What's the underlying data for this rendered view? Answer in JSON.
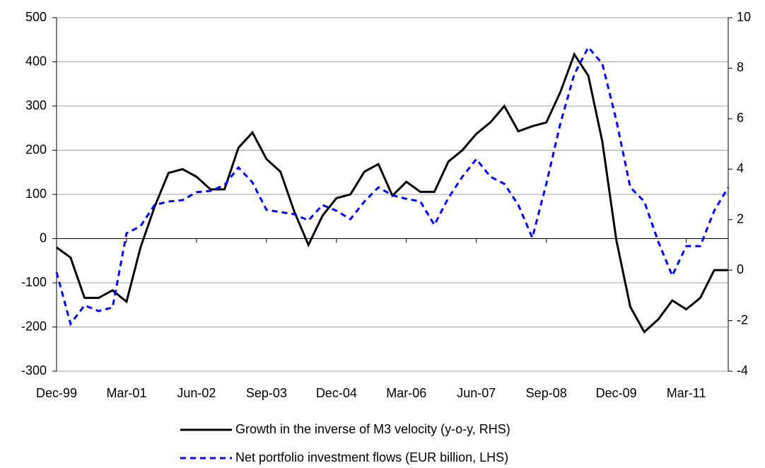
{
  "chart_data": {
    "type": "line",
    "categories": [
      "Dec-99",
      null,
      null,
      null,
      null,
      "Mar-01",
      null,
      null,
      null,
      null,
      "Jun-02",
      null,
      null,
      null,
      null,
      "Sep-03",
      null,
      null,
      null,
      null,
      "Dec-04",
      null,
      null,
      null,
      null,
      "Mar-06",
      null,
      null,
      null,
      null,
      "Jun-07",
      null,
      null,
      null,
      null,
      "Sep-08",
      null,
      null,
      null,
      null,
      "Dec-09",
      null,
      null,
      null,
      null,
      "Mar-11",
      null,
      null,
      null
    ],
    "series": [
      {
        "name": "Growth in the inverse of M3 velocity (y-o-y, RHS)",
        "color": "#000000",
        "line_style": "solid",
        "axis": "y2",
        "values": [
          0.9,
          0.5,
          -1.1,
          -1.1,
          -0.8,
          -1.25,
          0.9,
          2.5,
          3.85,
          4.0,
          3.7,
          3.2,
          3.2,
          4.85,
          5.45,
          4.4,
          3.9,
          2.3,
          1.0,
          2.15,
          2.85,
          3.0,
          3.9,
          4.2,
          2.95,
          3.5,
          3.1,
          3.1,
          4.3,
          4.75,
          5.4,
          5.85,
          6.5,
          5.5,
          5.7,
          5.85,
          7.05,
          8.55,
          7.7,
          5.1,
          1.2,
          -1.45,
          -2.45,
          -1.95,
          -1.2,
          -1.55,
          -1.1,
          0.0,
          0.0
        ]
      },
      {
        "name": "Net portfolio investment flows (EUR billion, LHS)",
        "color": "#0000ff",
        "line_style": "dashed",
        "axis": "y",
        "values": [
          -76,
          -193,
          -151,
          -164,
          -156,
          12,
          28,
          76,
          84,
          87,
          105,
          108,
          121,
          161,
          127,
          65,
          60,
          55,
          41,
          76,
          63,
          44,
          84,
          116,
          98,
          90,
          84,
          31,
          92,
          140,
          180,
          140,
          124,
          76,
          2,
          124,
          260,
          372,
          433,
          396,
          268,
          116,
          84,
          -7,
          -84,
          -17,
          -17,
          63,
          116
        ]
      }
    ],
    "ylim": [
      -300,
      500
    ],
    "yticks": [
      -300,
      -200,
      -100,
      0,
      100,
      200,
      300,
      400,
      500
    ],
    "y2lim": [
      -4,
      10
    ],
    "y2ticks": [
      -4,
      -2,
      0,
      2,
      4,
      6,
      8,
      10
    ],
    "grid": true,
    "legend": "bottom"
  }
}
